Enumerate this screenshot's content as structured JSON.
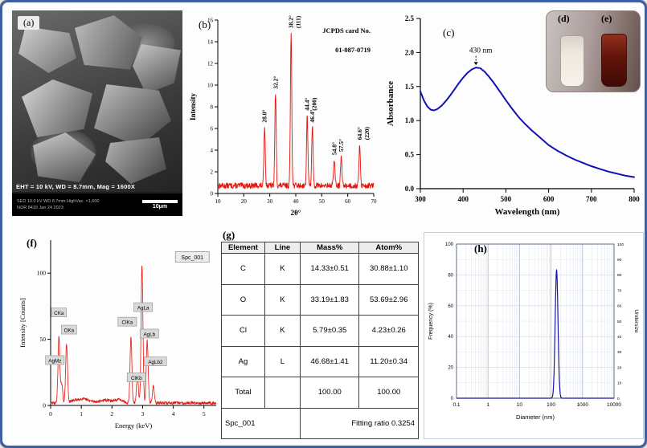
{
  "labels": {
    "a": "(a)",
    "b": "(b)",
    "c": "(c)",
    "d": "(d)",
    "e": "(e)",
    "f": "(f)",
    "g": "(g)",
    "h": "(h)"
  },
  "sem": {
    "info_line": "EHT = 10 kV, WD = 8.7mm, Mag = 1600X",
    "status_line1": "SED   10.0 kV   WD 8.7mm   HighVac.   ×1,600",
    "status_line2": "NOR   8419   Jan 24 2023",
    "scale_label": "10μm"
  },
  "table": {
    "headers": [
      "Element",
      "Line",
      "Mass%",
      "Atom%"
    ],
    "rows": [
      [
        "C",
        "K",
        "14.33±0.51",
        "30.88±1.10"
      ],
      [
        "O",
        "K",
        "33.19±1.83",
        "53.69±2.96"
      ],
      [
        "Cl",
        "K",
        "5.79±0.35",
        "4.23±0.26"
      ],
      [
        "Ag",
        "L",
        "46.68±1.41",
        "11.20±0.34"
      ],
      [
        "Total",
        "",
        "100.00",
        "100.00"
      ]
    ],
    "footer": {
      "left": "Spc_001",
      "right": "Fitting ratio 0.3254"
    }
  },
  "colors": {
    "frame": "#3d5fa9",
    "xrd_trace": "#e3140c",
    "uv_curve": "#1111b5",
    "edx_trace": "#e3140c",
    "dls_curve": "#1515a8"
  },
  "chart_data": [
    {
      "id": "xrd",
      "type": "line",
      "color": "#e3140c",
      "title": "",
      "xlabel": "2θ°",
      "ylabel": "Intensity",
      "xlim": [
        10,
        70
      ],
      "ylim": [
        0,
        16
      ],
      "xticks": [
        10,
        20,
        30,
        40,
        50,
        60,
        70
      ],
      "yticks": [
        0,
        2,
        4,
        6,
        8,
        10,
        12,
        14,
        16
      ],
      "annotation": [
        "JCPDS card No.",
        "01-087-0719"
      ],
      "peaks": [
        {
          "x": 28.0,
          "h": 5.5,
          "label": "28.0°"
        },
        {
          "x": 32.2,
          "h": 8.6,
          "label": "32.2°"
        },
        {
          "x": 38.2,
          "h": 14.2,
          "label": "38.2°",
          "label2": "(111)"
        },
        {
          "x": 44.4,
          "h": 6.6,
          "label": "44.4°",
          "label2": "(200)"
        },
        {
          "x": 46.4,
          "h": 5.5,
          "label": "46.4°"
        },
        {
          "x": 54.8,
          "h": 2.5,
          "label": "54.8°"
        },
        {
          "x": 57.5,
          "h": 2.8,
          "label": "57.5°"
        },
        {
          "x": 64.6,
          "h": 3.9,
          "label": "64.6°",
          "label2": "(220)"
        }
      ]
    },
    {
      "id": "uv",
      "type": "line",
      "color": "#1111b5",
      "xlabel": "Wavelength (nm)",
      "ylabel": "Absorbance",
      "xlim": [
        300,
        800
      ],
      "ylim": [
        0,
        2.5
      ],
      "xticks": [
        300,
        400,
        500,
        600,
        700,
        800
      ],
      "yticks": [
        0,
        0.5,
        1,
        1.5,
        2,
        2.5
      ],
      "annotation": "430 nm",
      "annotation_x": 430,
      "points": [
        [
          300,
          1.43
        ],
        [
          308,
          1.3
        ],
        [
          316,
          1.21
        ],
        [
          324,
          1.16
        ],
        [
          332,
          1.15
        ],
        [
          340,
          1.17
        ],
        [
          350,
          1.22
        ],
        [
          360,
          1.29
        ],
        [
          370,
          1.37
        ],
        [
          380,
          1.46
        ],
        [
          390,
          1.55
        ],
        [
          400,
          1.63
        ],
        [
          410,
          1.7
        ],
        [
          420,
          1.75
        ],
        [
          430,
          1.78
        ],
        [
          440,
          1.77
        ],
        [
          450,
          1.72
        ],
        [
          460,
          1.65
        ],
        [
          470,
          1.57
        ],
        [
          480,
          1.48
        ],
        [
          490,
          1.39
        ],
        [
          500,
          1.3
        ],
        [
          515,
          1.17
        ],
        [
          530,
          1.05
        ],
        [
          545,
          0.95
        ],
        [
          560,
          0.86
        ],
        [
          580,
          0.75
        ],
        [
          600,
          0.64
        ],
        [
          620,
          0.56
        ],
        [
          640,
          0.49
        ],
        [
          660,
          0.43
        ],
        [
          680,
          0.38
        ],
        [
          700,
          0.33
        ],
        [
          720,
          0.29
        ],
        [
          740,
          0.25
        ],
        [
          760,
          0.22
        ],
        [
          780,
          0.19
        ],
        [
          800,
          0.17
        ]
      ]
    },
    {
      "id": "edx",
      "type": "line",
      "color": "#e3140c",
      "xlabel": "Energy (keV)",
      "ylabel": "Intensity [Counts]",
      "xlim": [
        0,
        5.4
      ],
      "ylim": [
        0,
        125
      ],
      "xticks": [
        0,
        1,
        2,
        3,
        4,
        5
      ],
      "yticks": [
        0,
        50,
        100
      ],
      "spc_label": "Spc_001",
      "peaks": [
        {
          "x": 0.27,
          "h": 50
        },
        {
          "x": 0.36,
          "h": 14
        },
        {
          "x": 0.52,
          "h": 44
        },
        {
          "x": 2.62,
          "h": 50
        },
        {
          "x": 2.83,
          "h": 20
        },
        {
          "x": 2.98,
          "h": 104
        },
        {
          "x": 3.15,
          "h": 47
        },
        {
          "x": 3.35,
          "h": 13
        }
      ],
      "tags": [
        {
          "x": 0.27,
          "y": 70,
          "text": "CKa"
        },
        {
          "x": 0.6,
          "y": 57,
          "text": "OKa"
        },
        {
          "x": 0.14,
          "y": 34,
          "text": "AgMz"
        },
        {
          "x": 2.5,
          "y": 63,
          "text": "ClKa"
        },
        {
          "x": 3.02,
          "y": 74,
          "text": "AgLa"
        },
        {
          "x": 3.22,
          "y": 54,
          "text": "AgLb"
        },
        {
          "x": 3.42,
          "y": 33,
          "text": "AgLb2"
        },
        {
          "x": 2.8,
          "y": 21,
          "text": "ClKb"
        }
      ]
    },
    {
      "id": "dls",
      "type": "line",
      "color": "#1515a8",
      "xlabel": "Diameter (nm)",
      "ylabel": "Frequency (%)",
      "ylabel_right": "Undersize",
      "xscale": "log",
      "xlim": [
        0.1,
        10000
      ],
      "ylim": [
        0,
        100
      ],
      "xticklabels": [
        "0.1",
        "1",
        "10",
        "100",
        "1000",
        "10000"
      ],
      "yticks": [
        0,
        20,
        40,
        60,
        80,
        100
      ],
      "yticks_right": [
        0,
        10,
        20,
        30,
        40,
        50,
        60,
        70,
        80,
        90,
        100
      ],
      "peak": {
        "center_nm": 150,
        "sigma_log": 0.045,
        "height": 83
      }
    }
  ]
}
